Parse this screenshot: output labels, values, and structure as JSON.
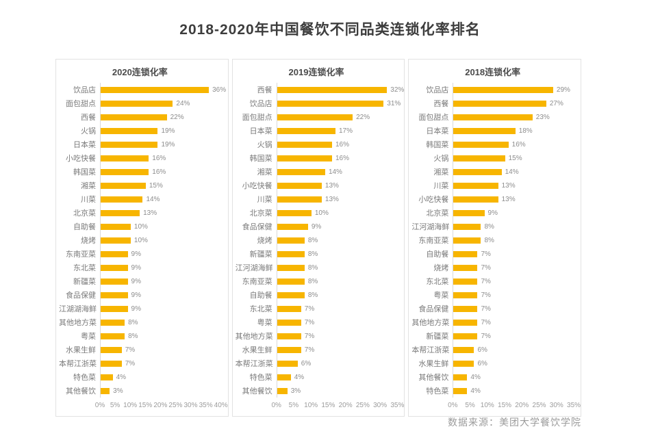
{
  "title": "2018-2020年中国餐饮不同品类连锁化率排名",
  "footer": {
    "source": "数据来源：美团大学餐饮学院"
  },
  "colors": {
    "bar": "#F7B500",
    "title_text": "#3D3D3D",
    "panel_header_text": "#4A4A4A",
    "category_text": "#7A7A7A",
    "value_text": "#8C8C8C",
    "tick_text": "#9B9B9B",
    "card_border": "#E2E2E2",
    "axis_line": "#D9D9D9"
  },
  "chart_data": [
    {
      "type": "bar",
      "orientation": "horizontal",
      "title": "2020连锁化率",
      "xlabel": "",
      "ylabel": "",
      "xlim": [
        0,
        40
      ],
      "grid": false,
      "legend": false,
      "ticks": [
        "0%",
        "5%",
        "10%",
        "15%",
        "20%",
        "25%",
        "30%",
        "35%",
        "40%"
      ],
      "categories": [
        "饮品店",
        "面包甜点",
        "西餐",
        "火锅",
        "日本菜",
        "小吃快餐",
        "韩国菜",
        "湘菜",
        "川菜",
        "北京菜",
        "自助餐",
        "烧烤",
        "东南亚菜",
        "东北菜",
        "新疆菜",
        "食品保健",
        "江湖湖海鲜",
        "其他地方菜",
        "粤菜",
        "水果生鲜",
        "本帮江浙菜",
        "特色菜",
        "其他餐饮"
      ],
      "values": [
        36,
        24,
        22,
        19,
        19,
        16,
        16,
        15,
        14,
        13,
        10,
        10,
        9,
        9,
        9,
        9,
        9,
        8,
        8,
        7,
        7,
        4,
        3
      ],
      "value_suffix": "%"
    },
    {
      "type": "bar",
      "orientation": "horizontal",
      "title": "2019连锁化率",
      "xlabel": "",
      "ylabel": "",
      "xlim": [
        0,
        35
      ],
      "grid": false,
      "legend": false,
      "ticks": [
        "0%",
        "5%",
        "10%",
        "15%",
        "20%",
        "25%",
        "30%",
        "35%"
      ],
      "categories": [
        "西餐",
        "饮品店",
        "面包甜点",
        "日本菜",
        "火锅",
        "韩国菜",
        "湘菜",
        "小吃快餐",
        "川菜",
        "北京菜",
        "食品保健",
        "烧烤",
        "新疆菜",
        "江河湖海鲜",
        "东南亚菜",
        "自助餐",
        "东北菜",
        "粤菜",
        "其他地方菜",
        "水果生鲜",
        "本帮江浙菜",
        "特色菜",
        "其他餐饮"
      ],
      "values": [
        32,
        31,
        22,
        17,
        16,
        16,
        14,
        13,
        13,
        10,
        9,
        8,
        8,
        8,
        8,
        8,
        7,
        7,
        7,
        7,
        6,
        4,
        3
      ],
      "value_suffix": "%"
    },
    {
      "type": "bar",
      "orientation": "horizontal",
      "title": "2018连锁化率",
      "xlabel": "",
      "ylabel": "",
      "xlim": [
        0,
        35
      ],
      "grid": false,
      "legend": false,
      "ticks": [
        "0%",
        "5%",
        "10%",
        "15%",
        "20%",
        "25%",
        "30%",
        "35%"
      ],
      "categories": [
        "饮品店",
        "西餐",
        "面包甜点",
        "日本菜",
        "韩国菜",
        "火锅",
        "湘菜",
        "川菜",
        "小吃快餐",
        "北京菜",
        "江河湖海鲜",
        "东南亚菜",
        "自助餐",
        "烧烤",
        "东北菜",
        "粤菜",
        "食品保健",
        "其他地方菜",
        "新疆菜",
        "本帮江浙菜",
        "水果生鲜",
        "其他餐饮",
        "特色菜"
      ],
      "values": [
        29,
        27,
        23,
        18,
        16,
        15,
        14,
        13,
        13,
        9,
        8,
        8,
        7,
        7,
        7,
        7,
        7,
        7,
        7,
        6,
        6,
        4,
        4
      ],
      "value_suffix": "%"
    }
  ]
}
